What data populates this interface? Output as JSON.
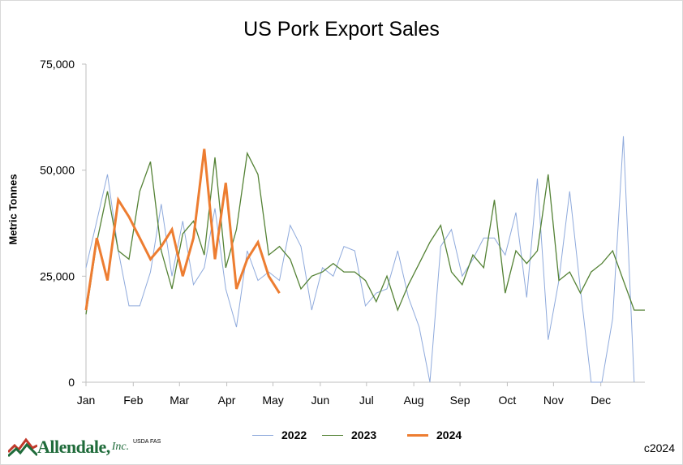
{
  "chart_data": {
    "type": "line",
    "title": "US Pork Export Sales",
    "xlabel": "",
    "ylabel": "Metric Tonnes",
    "ylim": [
      0,
      75000
    ],
    "yticks": [
      "0",
      "25,000",
      "50,000",
      "75,000"
    ],
    "ytick_values": [
      0,
      25000,
      50000,
      75000
    ],
    "xlim": [
      1,
      53
    ],
    "month_labels": [
      "Jan",
      "Feb",
      "Mar",
      "Apr",
      "May",
      "Jun",
      "Jul",
      "Aug",
      "Sep",
      "Oct",
      "Nov",
      "Dec"
    ],
    "month_weeks": [
      1,
      5.4,
      9.7,
      14.1,
      18.4,
      22.8,
      27.1,
      31.5,
      35.8,
      40.2,
      44.5,
      48.9
    ],
    "legend_position": "bottom",
    "grid": false,
    "series": [
      {
        "name": "2022",
        "color": "#8faadc",
        "width": 1,
        "x": [
          1,
          2,
          3,
          4,
          5,
          6,
          7,
          8,
          9,
          10,
          11,
          12,
          13,
          14,
          15,
          16,
          17,
          18,
          19,
          20,
          21,
          22,
          23,
          24,
          25,
          26,
          27,
          28,
          29,
          30,
          31,
          32,
          33,
          34,
          35,
          36,
          37,
          38,
          39,
          40,
          41,
          42,
          43,
          44,
          45,
          46,
          47,
          48,
          49,
          50,
          51,
          52
        ],
        "values": [
          27000,
          38000,
          49000,
          31000,
          18000,
          18000,
          26000,
          42000,
          25000,
          38000,
          23000,
          27000,
          41000,
          22000,
          13000,
          31000,
          24000,
          26000,
          24000,
          37000,
          32000,
          17000,
          27000,
          25000,
          32000,
          31000,
          18000,
          21000,
          22000,
          31000,
          20000,
          13000,
          0,
          32000,
          36000,
          25000,
          29000,
          34000,
          34000,
          30000,
          40000,
          20000,
          48000,
          10000,
          24000,
          45000,
          22000,
          0,
          0,
          15000,
          58000,
          0
        ]
      },
      {
        "name": "2023",
        "color": "#548235",
        "width": 1.3,
        "x": [
          1,
          2,
          3,
          4,
          5,
          6,
          7,
          8,
          9,
          10,
          11,
          12,
          13,
          14,
          15,
          16,
          17,
          18,
          19,
          20,
          21,
          22,
          23,
          24,
          25,
          26,
          27,
          28,
          29,
          30,
          31,
          32,
          33,
          34,
          35,
          36,
          37,
          38,
          39,
          40,
          41,
          42,
          43,
          44,
          45,
          46,
          47,
          48,
          49,
          50,
          51,
          52,
          53
        ],
        "values": [
          16000,
          33000,
          45000,
          31000,
          29000,
          45000,
          52000,
          31000,
          22000,
          35000,
          38000,
          30000,
          53000,
          27000,
          36000,
          54000,
          49000,
          30000,
          32000,
          29000,
          22000,
          25000,
          26000,
          28000,
          26000,
          26000,
          24000,
          19000,
          25000,
          17000,
          23000,
          28000,
          33000,
          37000,
          26000,
          23000,
          30000,
          27000,
          43000,
          21000,
          31000,
          28000,
          31000,
          49000,
          24000,
          26000,
          21000,
          26000,
          28000,
          31000,
          24000,
          17000,
          17000
        ]
      },
      {
        "name": "2024",
        "color": "#ed7d31",
        "width": 3,
        "x": [
          1,
          2,
          3,
          4,
          5,
          6,
          7,
          8,
          9,
          10,
          11,
          12,
          13,
          14,
          15,
          16,
          17,
          18,
          19
        ],
        "values": [
          17000,
          34000,
          24000,
          43000,
          39000,
          34000,
          29000,
          32000,
          36000,
          25000,
          34000,
          55000,
          29000,
          47000,
          22000,
          29000,
          33000,
          25000,
          21000
        ]
      }
    ]
  },
  "legend": {
    "items": [
      {
        "label": "2022",
        "color": "#8faadc"
      },
      {
        "label": "2023",
        "color": "#548235"
      },
      {
        "label": "2024",
        "color": "#ed7d31"
      }
    ]
  },
  "footer": {
    "logo_text": "Allendale,",
    "logo_inc": "Inc.",
    "source": "USDA FAS",
    "copyright": "c2024"
  }
}
